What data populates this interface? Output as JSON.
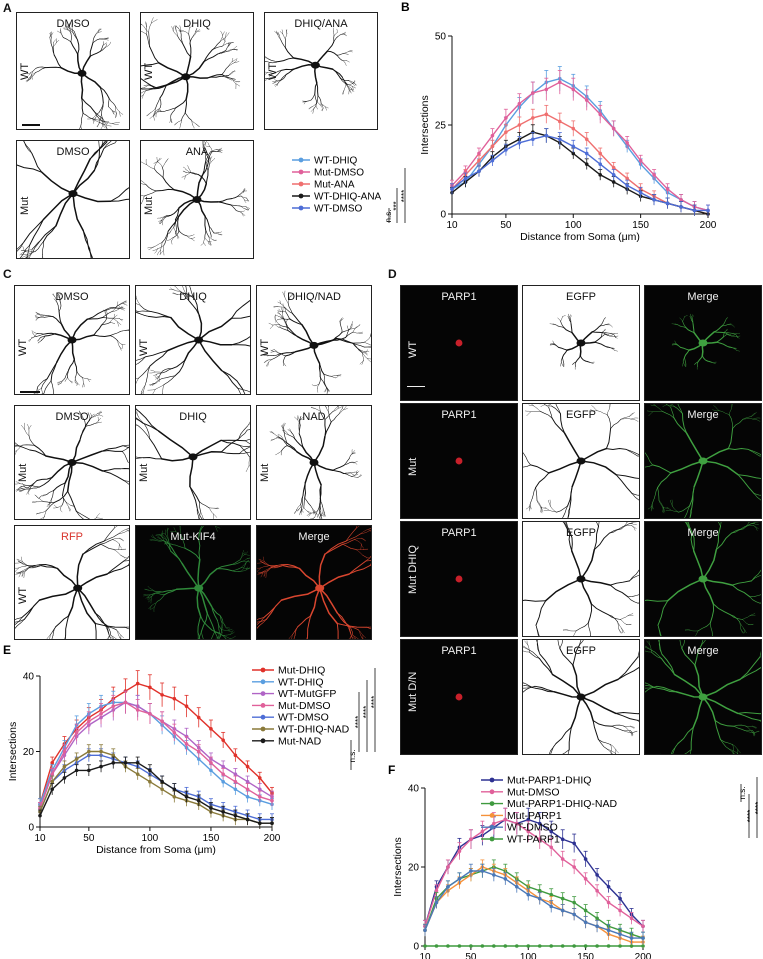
{
  "colors": {
    "red": "#e0312a",
    "lightblue": "#5a9ee0",
    "pink": "#e0609a",
    "salmon": "#ef6f6f",
    "black": "#1a1a1a",
    "navy": "#2d3192",
    "blue": "#4d6dd6",
    "purple": "#b064c6",
    "olive": "#8a7a3a",
    "orange": "#f5913a",
    "green": "#3f9a3f",
    "steel": "#4a78b8"
  },
  "panel_a": {
    "letter": "A",
    "row1_label": "WT",
    "row2_label": "Mut",
    "images": [
      {
        "title": "DMSO"
      },
      {
        "title": "DHIQ"
      },
      {
        "title": "DHIQ/ANA"
      },
      {
        "title": "DMSO"
      },
      {
        "title": "ANA"
      }
    ],
    "legend": [
      "WT-DHIQ",
      "Mut-DMSO",
      "Mut-ANA",
      "WT-DHIQ-ANA",
      "WT-DMSO"
    ],
    "stats": [
      "n.s.",
      "***",
      "****"
    ]
  },
  "panel_c": {
    "letter": "C",
    "row1_label": "WT",
    "row2_label": "Mut",
    "row3_label": "WT",
    "images": [
      {
        "title": "DMSO"
      },
      {
        "title": "DHIQ"
      },
      {
        "title": "DHIQ/NAD"
      },
      {
        "title": "DMSO"
      },
      {
        "title": "DHIQ"
      },
      {
        "title": "NAD"
      },
      {
        "title": "RFP"
      },
      {
        "title": "Mut-KIF4"
      },
      {
        "title": "Merge"
      }
    ]
  },
  "panel_d": {
    "letter": "D",
    "col_titles": [
      "PARP1",
      "EGFP",
      "Merge"
    ],
    "row_labels": [
      "WT",
      "Mut",
      "Mut DHIQ",
      "Mut D/N"
    ]
  },
  "panel_e": {
    "letter": "E",
    "stats": [
      "n.s.",
      "****",
      "****",
      "****"
    ]
  },
  "panel_f": {
    "letter": "F",
    "stats": [
      "n.s.",
      "****",
      "****"
    ]
  },
  "chart_data": [
    {
      "panel": "B",
      "type": "line",
      "xlabel": "Distance from Soma (μm)",
      "ylabel": "Intersections",
      "xlim": [
        10,
        200
      ],
      "ylim": [
        0,
        50
      ],
      "xticks": [
        10,
        50,
        100,
        150,
        200
      ],
      "yticks": [
        0,
        25,
        50
      ],
      "x": [
        10,
        20,
        30,
        40,
        50,
        60,
        70,
        80,
        90,
        100,
        110,
        120,
        130,
        140,
        150,
        160,
        170,
        180,
        190,
        200
      ],
      "series": [
        {
          "name": "WT-DHIQ",
          "color": "#5a9ee0",
          "values": [
            7,
            9,
            14,
            19,
            25,
            30,
            34,
            37,
            38,
            36,
            33,
            29,
            24,
            19,
            14,
            10,
            6,
            4,
            2,
            1
          ]
        },
        {
          "name": "Mut-DMSO",
          "color": "#e0609a",
          "values": [
            8,
            12,
            17,
            22,
            27,
            31,
            34,
            35,
            37,
            35,
            32,
            28,
            24,
            20,
            15,
            11,
            7,
            4,
            2,
            1
          ]
        },
        {
          "name": "Mut-ANA",
          "color": "#ef6f6f",
          "values": [
            7,
            11,
            15,
            19,
            23,
            25,
            27,
            28,
            26,
            24,
            21,
            17,
            13,
            10,
            7,
            5,
            3,
            2,
            1,
            0
          ]
        },
        {
          "name": "WT-DHIQ-ANA",
          "color": "#1a1a1a",
          "values": [
            6,
            9,
            12,
            16,
            19,
            21,
            23,
            22,
            20,
            17,
            14,
            11,
            9,
            7,
            5,
            4,
            3,
            2,
            1,
            0
          ]
        },
        {
          "name": "WT-DMSO",
          "color": "#4d6dd6",
          "values": [
            7,
            10,
            12,
            15,
            18,
            20,
            21,
            22,
            21,
            19,
            17,
            14,
            11,
            8,
            6,
            4,
            3,
            2,
            1,
            1
          ]
        }
      ]
    },
    {
      "panel": "E",
      "type": "line",
      "xlabel": "Distance from Soma (μm)",
      "ylabel": "Intersections",
      "xlim": [
        10,
        200
      ],
      "ylim": [
        0,
        40
      ],
      "xticks": [
        10,
        50,
        100,
        150,
        200
      ],
      "yticks": [
        0,
        20,
        40
      ],
      "x": [
        10,
        20,
        30,
        40,
        50,
        60,
        70,
        80,
        90,
        100,
        110,
        120,
        130,
        140,
        150,
        160,
        170,
        180,
        190,
        200
      ],
      "series": [
        {
          "name": "Mut-DHIQ",
          "color": "#e0312a",
          "values": [
            6,
            17,
            22,
            26,
            29,
            31,
            34,
            36,
            38,
            37,
            35,
            34,
            32,
            29,
            26,
            23,
            19,
            16,
            13,
            9
          ]
        },
        {
          "name": "WT-DHIQ",
          "color": "#5a9ee0",
          "values": [
            6,
            15,
            21,
            27,
            30,
            32,
            33,
            33,
            32,
            30,
            27,
            24,
            21,
            18,
            15,
            12,
            10,
            8,
            7,
            6
          ]
        },
        {
          "name": "WT-MutGFP",
          "color": "#b064c6",
          "values": [
            5,
            14,
            19,
            24,
            27,
            29,
            31,
            33,
            32,
            30,
            28,
            26,
            24,
            21,
            18,
            16,
            14,
            12,
            10,
            8
          ]
        },
        {
          "name": "Mut-DMSO",
          "color": "#e0609a",
          "values": [
            5,
            14,
            20,
            25,
            28,
            30,
            32,
            33,
            31,
            30,
            28,
            25,
            22,
            20,
            17,
            14,
            12,
            10,
            8,
            7
          ]
        },
        {
          "name": "WT-DMSO",
          "color": "#4d6dd6",
          "values": [
            4,
            12,
            15,
            17,
            19,
            19,
            18,
            17,
            16,
            14,
            12,
            10,
            9,
            8,
            6,
            5,
            4,
            3,
            2,
            2
          ]
        },
        {
          "name": "WT-DHIQ-NAD",
          "color": "#8a7a3a",
          "values": [
            4,
            12,
            16,
            18,
            20,
            20,
            19,
            16,
            14,
            12,
            10,
            8,
            7,
            6,
            4,
            3,
            2,
            2,
            1,
            1
          ]
        },
        {
          "name": "Mut-NAD",
          "color": "#1a1a1a",
          "values": [
            3,
            10,
            13,
            15,
            15,
            16,
            17,
            17,
            17,
            15,
            12,
            10,
            8,
            7,
            5,
            4,
            3,
            2,
            1,
            1
          ]
        }
      ]
    },
    {
      "panel": "F",
      "type": "line",
      "xlabel": "Distance from Soma (μm)",
      "ylabel": "Intersections",
      "xlim": [
        10,
        200
      ],
      "ylim": [
        0,
        40
      ],
      "xticks": [
        10,
        50,
        100,
        150,
        200
      ],
      "yticks": [
        0,
        20,
        40
      ],
      "x": [
        10,
        20,
        30,
        40,
        50,
        60,
        70,
        80,
        90,
        100,
        110,
        120,
        130,
        140,
        150,
        160,
        170,
        180,
        190,
        200
      ],
      "series": [
        {
          "name": "Mut-PARP1-DHIQ",
          "color": "#2d3192",
          "values": [
            5,
            15,
            20,
            25,
            27,
            28,
            30,
            32,
            31,
            32,
            31,
            29,
            27,
            26,
            22,
            18,
            15,
            12,
            8,
            5
          ]
        },
        {
          "name": "Mut-DMSO",
          "color": "#e0609a",
          "values": [
            5,
            14,
            20,
            24,
            27,
            29,
            31,
            32,
            31,
            29,
            27,
            25,
            22,
            20,
            17,
            14,
            11,
            9,
            7,
            5
          ]
        },
        {
          "name": "Mut-PARP1-DHIQ-NAD",
          "color": "#3f9a3f",
          "values": [
            4,
            12,
            15,
            17,
            18,
            19,
            20,
            19,
            17,
            15,
            14,
            13,
            12,
            11,
            9,
            7,
            5,
            4,
            3,
            2
          ]
        },
        {
          "name": "Mut-PARP1",
          "color": "#f5913a",
          "values": [
            4,
            11,
            14,
            16,
            18,
            20,
            19,
            18,
            16,
            14,
            12,
            11,
            9,
            8,
            6,
            5,
            3,
            2,
            1,
            1
          ]
        },
        {
          "name": "WT-DMSO",
          "color": "#4a78b8",
          "values": [
            4,
            11,
            15,
            17,
            19,
            19,
            18,
            17,
            15,
            13,
            12,
            10,
            9,
            8,
            6,
            5,
            4,
            3,
            2,
            2
          ]
        },
        {
          "name": "WT-PARP1",
          "color": "#3f9a3f",
          "values": [
            0,
            0,
            0,
            0,
            0,
            0,
            0,
            0,
            0,
            0,
            0,
            0,
            0,
            0,
            0,
            0,
            0,
            0,
            0,
            0
          ]
        }
      ]
    }
  ]
}
